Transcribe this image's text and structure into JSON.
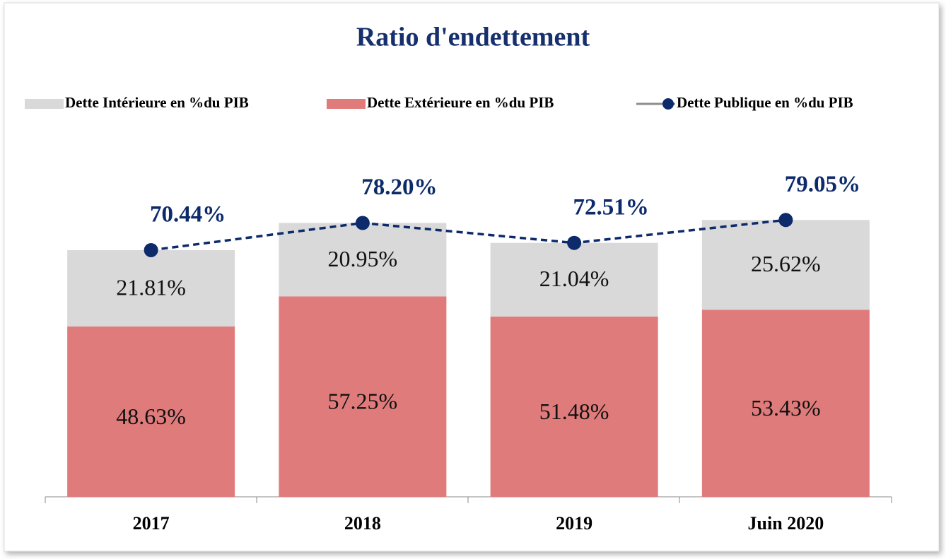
{
  "chart_data": {
    "type": "stacked-bar-line",
    "title": "Ratio d'endettement",
    "categories": [
      "2017",
      "2018",
      "2019",
      "Juin 2020"
    ],
    "series": [
      {
        "name": "Dette Intérieure en %du PIB",
        "color": "#d9d9d9",
        "type": "bar",
        "values": [
          21.81,
          20.95,
          21.04,
          25.62
        ],
        "value_labels": [
          "21.81%",
          "20.95%",
          "21.04%",
          "25.62%"
        ]
      },
      {
        "name": "Dette Extérieure en %du PIB",
        "color": "#e07b7b",
        "type": "bar",
        "values": [
          48.63,
          57.25,
          51.48,
          53.43
        ],
        "value_labels": [
          "48.63%",
          "57.25%",
          "51.48%",
          "53.43%"
        ]
      },
      {
        "name": "Dette Publique en %du PIB",
        "color": "#0d2a6b",
        "type": "line",
        "values": [
          70.44,
          78.2,
          72.51,
          79.05
        ],
        "value_labels": [
          "70.44%",
          "78.20%",
          "72.51%",
          "79.05%"
        ]
      }
    ],
    "legend": "top"
  }
}
